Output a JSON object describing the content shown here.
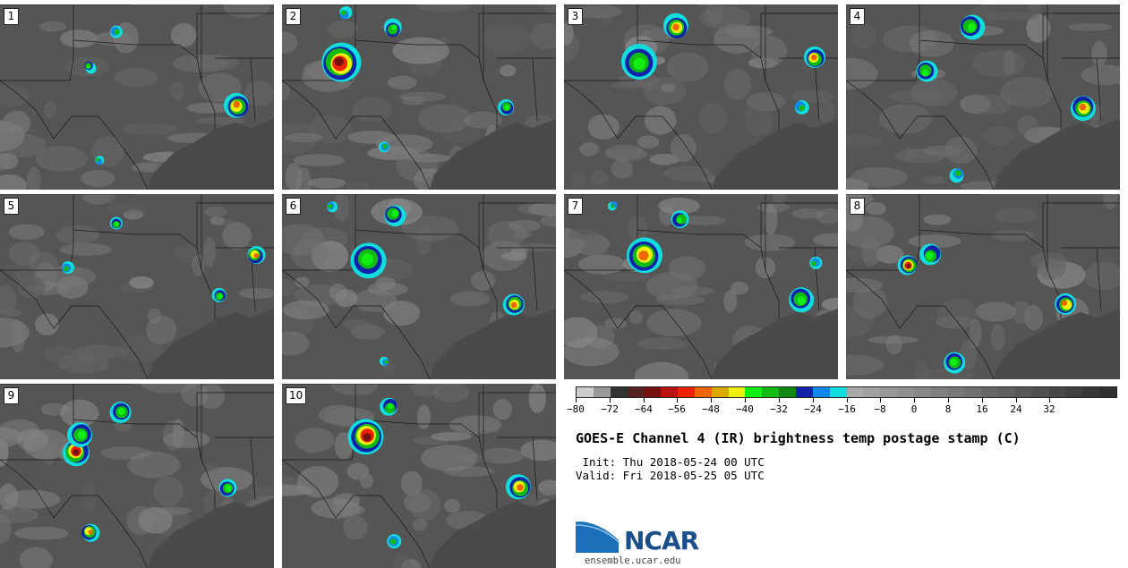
{
  "panels": [
    {
      "label": "1"
    },
    {
      "label": "2"
    },
    {
      "label": "3"
    },
    {
      "label": "4"
    },
    {
      "label": "5"
    },
    {
      "label": "6"
    },
    {
      "label": "7"
    },
    {
      "label": "8"
    },
    {
      "label": "9"
    },
    {
      "label": "10"
    }
  ],
  "colorbar": {
    "colors": [
      "#cccccc",
      "#999999",
      "#333333",
      "#552222",
      "#771111",
      "#bb1111",
      "#ee2200",
      "#ee6600",
      "#ddaa00",
      "#eeee11",
      "#11ee11",
      "#11bb11",
      "#118811",
      "#1122aa",
      "#1188ee",
      "#11dddd",
      "#aaaaaa",
      "#a0a0a0",
      "#989898",
      "#909090",
      "#888888",
      "#808080",
      "#787878",
      "#707070",
      "#686868",
      "#606060",
      "#585858",
      "#505050",
      "#484848",
      "#404040",
      "#383838",
      "#303030"
    ],
    "ticks": [
      "−80",
      "−72",
      "−64",
      "−56",
      "−48",
      "−40",
      "−32",
      "−24",
      "−16",
      "−8",
      "0",
      "8",
      "16",
      "24",
      "32"
    ]
  },
  "title": "GOES-E Channel 4 (IR) brightness temp postage stamp (C)",
  "init": " Init: Thu 2018-05-24 00 UTC",
  "valid": "Valid: Fri 2018-05-25 05 UTC",
  "logo": {
    "text": "NCAR",
    "color": "#1b4f8a"
  },
  "website": "ensemble.ucar.edu"
}
